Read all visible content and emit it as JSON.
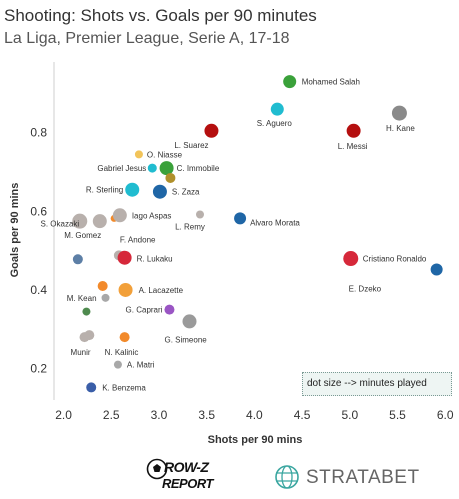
{
  "chart_data": {
    "type": "scatter",
    "title": "Shooting: Shots vs. Goals per 90 minutes",
    "subtitle": "La Liga, Premier League, Serie A, 17-18",
    "xlabel": "Shots per 90 mins",
    "ylabel": "Goals per 90 mins",
    "xlim": [
      1.9,
      6.05
    ],
    "ylim": [
      0.12,
      0.98
    ],
    "xticks": [
      "2.0",
      "2.5",
      "3.0",
      "3.5",
      "4.0",
      "4.5",
      "5.0",
      "5.5",
      "6.0"
    ],
    "yticks": [
      "0.2",
      "0.4",
      "0.6",
      "0.8"
    ],
    "grid": false,
    "legend_note": "dot size --> minutes played",
    "points": [
      {
        "x": 4.37,
        "y": 0.93,
        "label": "Mohamed Salah",
        "color": "#3aa13a",
        "size": 6.5
      },
      {
        "x": 4.24,
        "y": 0.86,
        "label": "S. Aguero",
        "color": "#20bcd0",
        "size": 6.5
      },
      {
        "x": 5.52,
        "y": 0.85,
        "label": "H. Kane",
        "color": "#8a8a8a",
        "size": 7.5
      },
      {
        "x": 3.55,
        "y": 0.805,
        "label": "L. Suarez",
        "color": "#b50f0f",
        "size": 7
      },
      {
        "x": 5.04,
        "y": 0.805,
        "label": "L. Messi",
        "color": "#b50f0f",
        "size": 7
      },
      {
        "x": 2.79,
        "y": 0.745,
        "label": "O. Niasse",
        "color": "#f2c45a",
        "size": 4
      },
      {
        "x": 2.93,
        "y": 0.71,
        "label": "Gabriel Jesus",
        "color": "#20bcd0",
        "size": 4.5
      },
      {
        "x": 3.08,
        "y": 0.71,
        "label": "C. Immobile",
        "color": "#3aa13a",
        "size": 7
      },
      {
        "x": 3.12,
        "y": 0.685,
        "label": "",
        "color": "#b0902b",
        "size": 5
      },
      {
        "x": 2.72,
        "y": 0.655,
        "label": "R. Sterling",
        "color": "#20bcd0",
        "size": 7
      },
      {
        "x": 3.01,
        "y": 0.65,
        "label": "S. Zaza",
        "color": "#1f66a6",
        "size": 7
      },
      {
        "x": 2.17,
        "y": 0.575,
        "label": "M. Gomez",
        "color": "#b8b0ac",
        "size": 7.5
      },
      {
        "x": 2.38,
        "y": 0.575,
        "label": "",
        "color": "#b8b0ac",
        "size": 7
      },
      {
        "x": 2.53,
        "y": 0.582,
        "label": "",
        "color": "#f28a2b",
        "size": 3.5
      },
      {
        "x": 2.59,
        "y": 0.59,
        "label": "Iago Aspas",
        "color": "#b8b0ac",
        "size": 7
      },
      {
        "x": 3.43,
        "y": 0.592,
        "label": "L. Remy",
        "color": "#b8b0ac",
        "size": 4
      },
      {
        "x": 3.85,
        "y": 0.582,
        "label": "Alvaro Morata",
        "color": "#1f66a6",
        "size": 6
      },
      {
        "x": 2.15,
        "y": 0.478,
        "label": "S. Okazaki",
        "color": "#5d7fa6",
        "size": 5
      },
      {
        "x": 2.58,
        "y": 0.488,
        "label": "F. Andone",
        "color": "#b8b0ac",
        "size": 5
      },
      {
        "x": 2.64,
        "y": 0.482,
        "label": "R. Lukaku",
        "color": "#d6283a",
        "size": 7
      },
      {
        "x": 5.01,
        "y": 0.48,
        "label": "Cristiano Ronaldo",
        "color": "#d6283a",
        "size": 7.5
      },
      {
        "x": 5.91,
        "y": 0.452,
        "label": "E. Dzeko",
        "color": "#1f66a6",
        "size": 6
      },
      {
        "x": 2.41,
        "y": 0.41,
        "label": "",
        "color": "#f28a2b",
        "size": 5
      },
      {
        "x": 2.44,
        "y": 0.38,
        "label": "M. Kean",
        "color": "#a8a8a8",
        "size": 4
      },
      {
        "x": 2.65,
        "y": 0.4,
        "label": "A. Lacazette",
        "color": "#f2a03a",
        "size": 7
      },
      {
        "x": 2.24,
        "y": 0.345,
        "label": "",
        "color": "#4e8a4e",
        "size": 4
      },
      {
        "x": 3.11,
        "y": 0.35,
        "label": "G. Caprari",
        "color": "#9a55c4",
        "size": 5
      },
      {
        "x": 3.32,
        "y": 0.32,
        "label": "G. Simeone",
        "color": "#9a9a9a",
        "size": 7
      },
      {
        "x": 2.22,
        "y": 0.28,
        "label": "Munir",
        "color": "#b8b0ac",
        "size": 5
      },
      {
        "x": 2.27,
        "y": 0.285,
        "label": "",
        "color": "#b8b0ac",
        "size": 5
      },
      {
        "x": 2.64,
        "y": 0.28,
        "label": "N. Kalinic",
        "color": "#f28a2b",
        "size": 5
      },
      {
        "x": 2.57,
        "y": 0.21,
        "label": "A. Matri",
        "color": "#a8a8a8",
        "size": 4
      },
      {
        "x": 2.29,
        "y": 0.152,
        "label": "K. Benzema",
        "color": "#3a5ea8",
        "size": 5
      }
    ]
  },
  "logos": {
    "rowz_line1": "ROW-Z",
    "rowz_line2": "REPORT",
    "stratabet": "STRATABET"
  }
}
